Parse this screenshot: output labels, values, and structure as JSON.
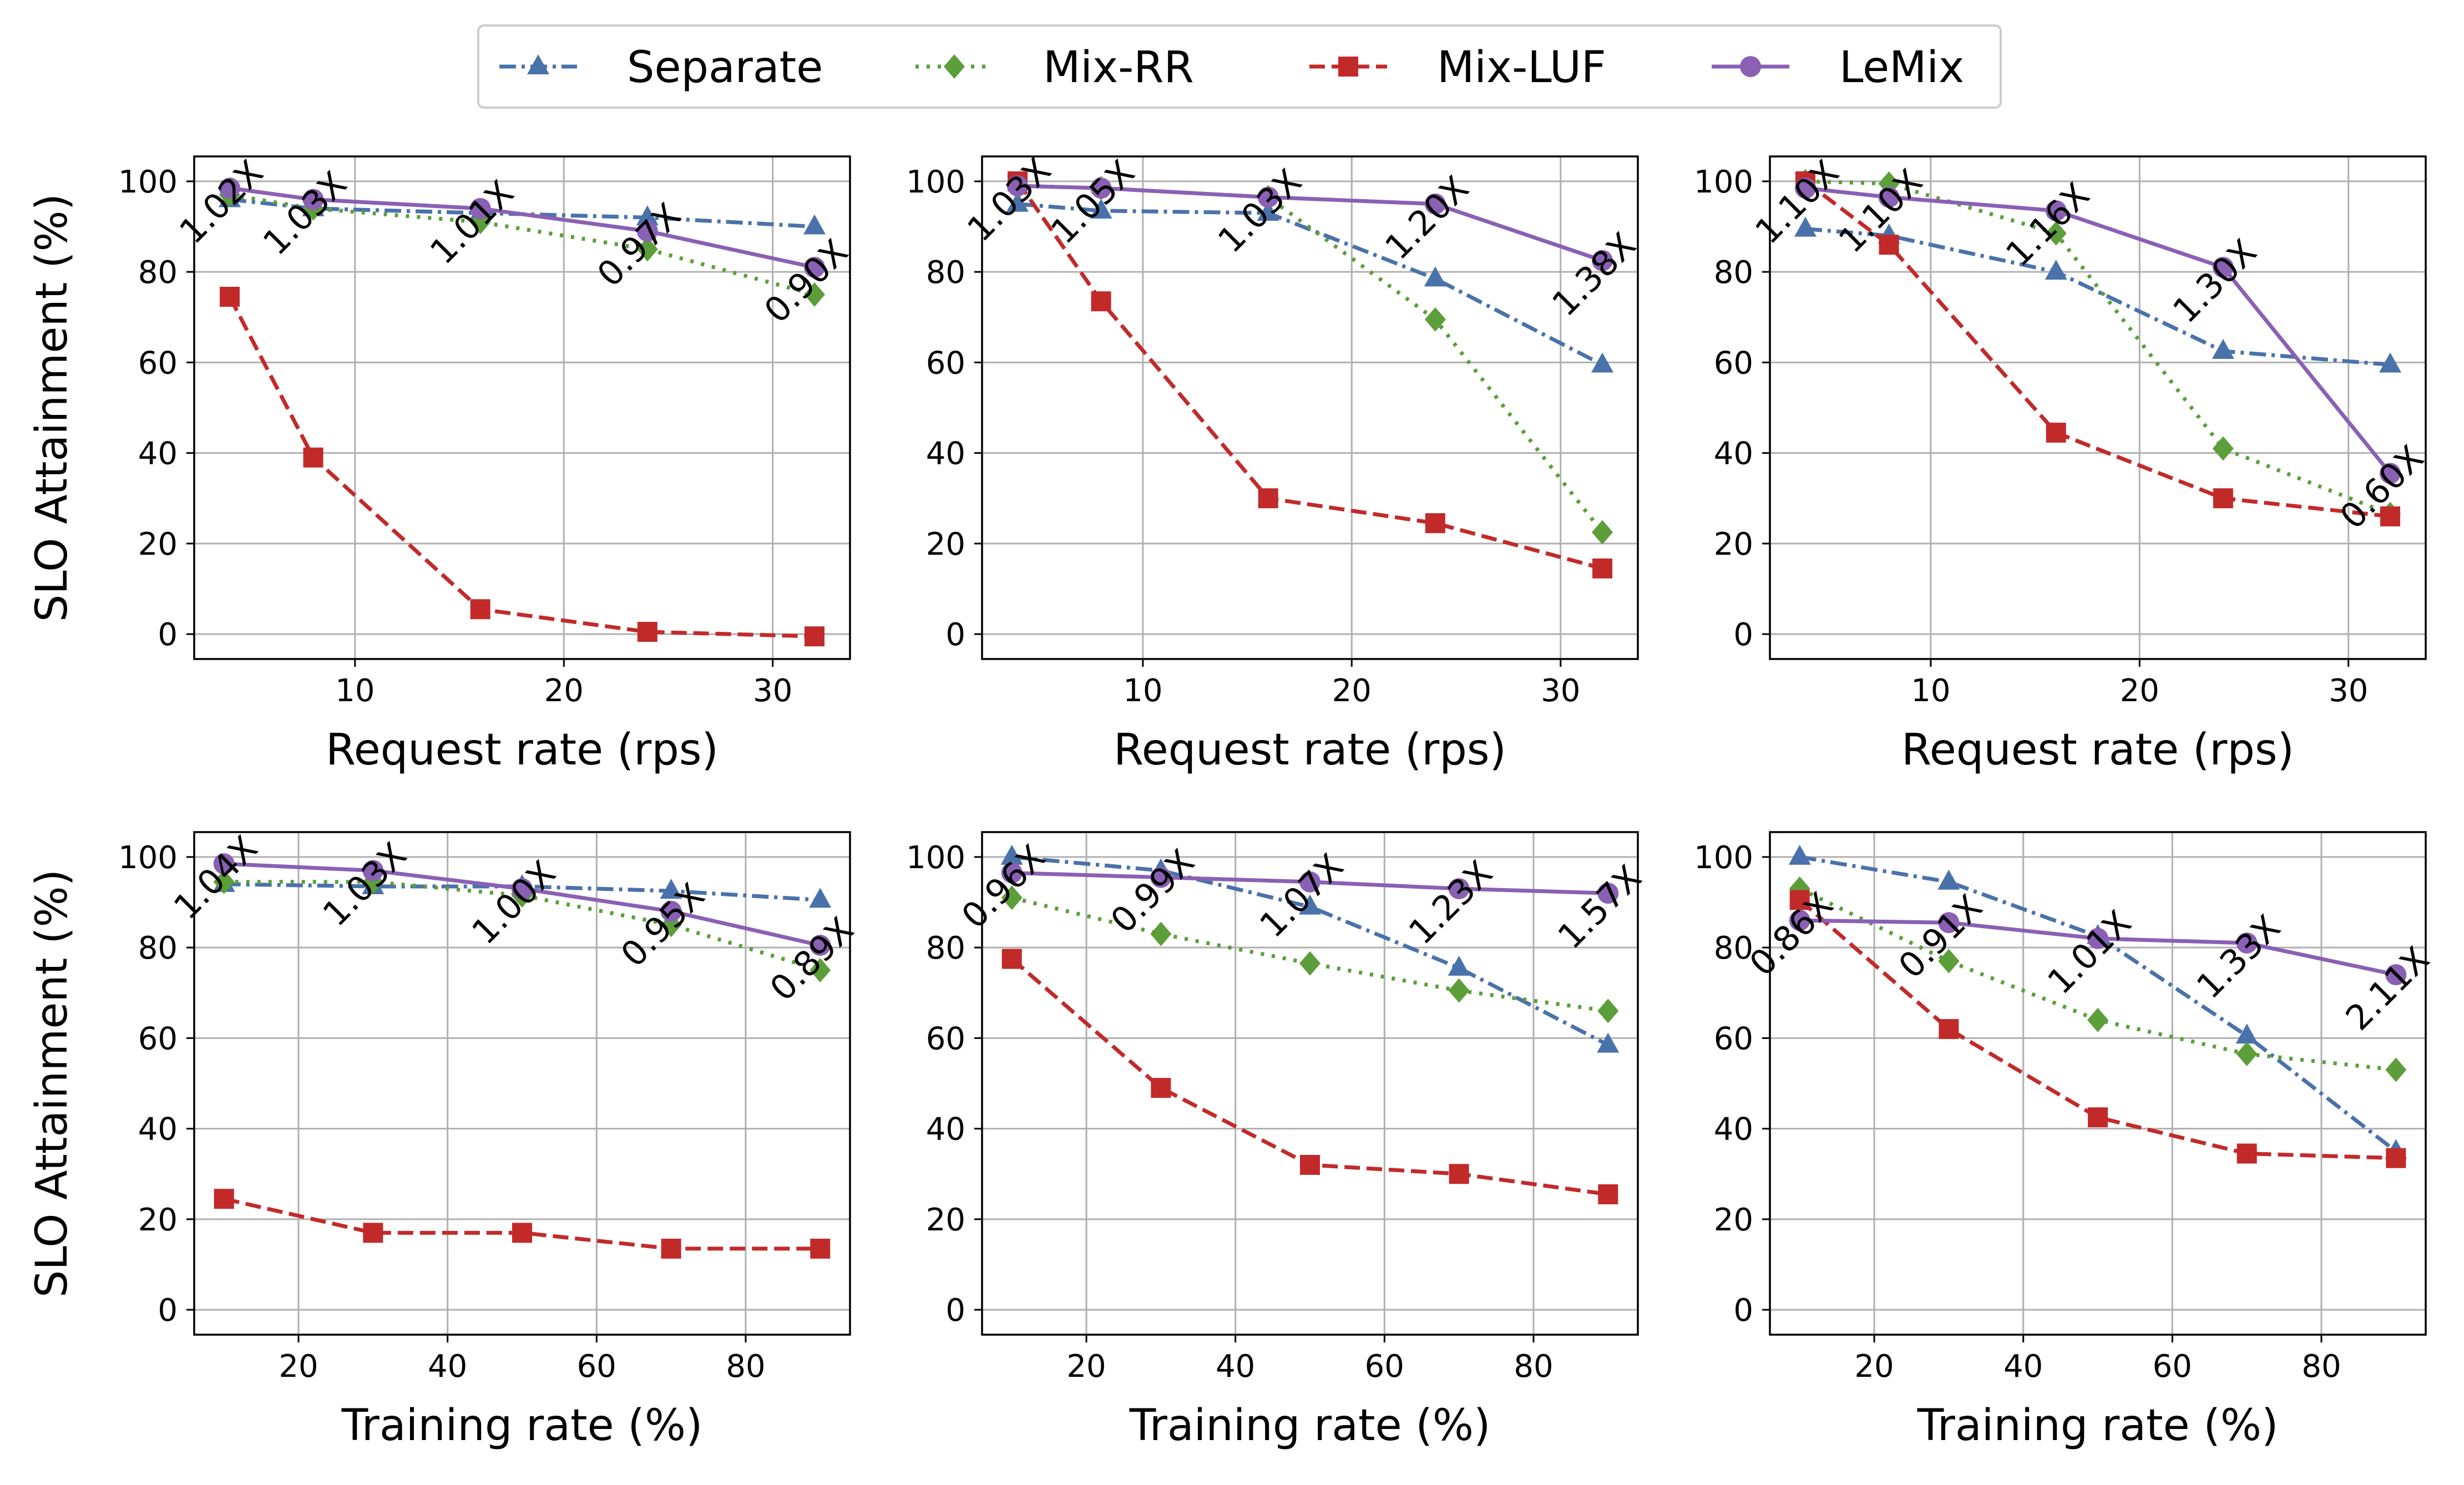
{
  "legend": [
    {
      "name": "Separate",
      "color": "#4a72aa",
      "marker": "triangle",
      "dash": "dashdot"
    },
    {
      "name": "Mix-RR",
      "color": "#5c9e3a",
      "marker": "diamond",
      "dash": "dotted"
    },
    {
      "name": "Mix-LUF",
      "color": "#c22a2a",
      "marker": "square",
      "dash": "dashed"
    },
    {
      "name": "LeMix",
      "color": "#8a60b4",
      "marker": "circle",
      "dash": "solid"
    }
  ],
  "chart_data": [
    {
      "type": "line",
      "xlabel": "Request rate (rps)",
      "ylabel": "SLO Attainment (%)",
      "xlim": [
        2.3,
        33.7
      ],
      "ylim": [
        -5.5,
        105.5
      ],
      "xticks": [
        10,
        20,
        30
      ],
      "yticks": [
        0,
        20,
        40,
        60,
        80,
        100
      ],
      "grid": true,
      "x": [
        4,
        8,
        16,
        24,
        32
      ],
      "series": [
        {
          "name": "Separate",
          "values": [
            96,
            94,
            93,
            92,
            90
          ]
        },
        {
          "name": "Mix-RR",
          "values": [
            97,
            94,
            91,
            85,
            75
          ]
        },
        {
          "name": "Mix-LUF",
          "values": [
            74.5,
            39,
            5.5,
            0.5,
            -0.5
          ]
        },
        {
          "name": "LeMix",
          "values": [
            98.5,
            96,
            94,
            89,
            81
          ]
        }
      ],
      "annotations": [
        "1.02X",
        "1.03X",
        "1.01X",
        "0.97X",
        "0.90X"
      ]
    },
    {
      "type": "line",
      "xlabel": "Request rate (rps)",
      "ylabel": "",
      "xlim": [
        2.3,
        33.7
      ],
      "ylim": [
        -5.5,
        105.5
      ],
      "xticks": [
        10,
        20,
        30
      ],
      "yticks": [
        0,
        20,
        40,
        60,
        80,
        100
      ],
      "grid": true,
      "x": [
        4,
        8,
        16,
        24,
        32
      ],
      "series": [
        {
          "name": "Separate",
          "values": [
            95,
            93.5,
            93,
            78.5,
            59.5
          ]
        },
        {
          "name": "Mix-RR",
          "values": [
            99,
            98.5,
            96.5,
            69.5,
            22.5
          ]
        },
        {
          "name": "Mix-LUF",
          "values": [
            100,
            73.5,
            30,
            24.5,
            14.5
          ]
        },
        {
          "name": "LeMix",
          "values": [
            99,
            98.5,
            96.5,
            95,
            82.5
          ]
        }
      ],
      "annotations": [
        "1.03X",
        "1.05X",
        "1.03X",
        "1.20X",
        "1.38X"
      ]
    },
    {
      "type": "line",
      "xlabel": "Request rate (rps)",
      "ylabel": "",
      "xlim": [
        2.3,
        33.7
      ],
      "ylim": [
        -5.5,
        105.5
      ],
      "xticks": [
        10,
        20,
        30
      ],
      "yticks": [
        0,
        20,
        40,
        60,
        80,
        100
      ],
      "grid": true,
      "x": [
        4,
        8,
        16,
        24,
        32
      ],
      "series": [
        {
          "name": "Separate",
          "values": [
            89.5,
            88,
            80,
            62.5,
            59.5
          ]
        },
        {
          "name": "Mix-RR",
          "values": [
            100,
            99.5,
            88.5,
            41,
            26.5
          ]
        },
        {
          "name": "Mix-LUF",
          "values": [
            100,
            86,
            44.5,
            30,
            26
          ]
        },
        {
          "name": "LeMix",
          "values": [
            98.5,
            96.5,
            93.5,
            81,
            35.5
          ]
        }
      ],
      "annotations": [
        "1.10X",
        "1.10X",
        "1.16X",
        "1.30X",
        "0.60X"
      ]
    },
    {
      "type": "line",
      "xlabel": "Training rate (%)",
      "ylabel": "SLO Attainment (%)",
      "xlim": [
        6,
        94
      ],
      "ylim": [
        -5.5,
        105.5
      ],
      "xticks": [
        20,
        40,
        60,
        80
      ],
      "yticks": [
        0,
        20,
        40,
        60,
        80,
        100
      ],
      "grid": true,
      "x": [
        10,
        30,
        50,
        70,
        90
      ],
      "series": [
        {
          "name": "Separate",
          "values": [
            94,
            93.5,
            93.5,
            92.5,
            90.5
          ]
        },
        {
          "name": "Mix-RR",
          "values": [
            94.5,
            94.5,
            91.5,
            85,
            75
          ]
        },
        {
          "name": "Mix-LUF",
          "values": [
            24.5,
            17,
            17,
            13.5,
            13.5
          ]
        },
        {
          "name": "LeMix",
          "values": [
            98.5,
            97,
            93,
            88,
            80.5
          ]
        }
      ],
      "annotations": [
        "1.04X",
        "1.03X",
        "1.00X",
        "0.95X",
        "0.89X"
      ]
    },
    {
      "type": "line",
      "xlabel": "Training rate (%)",
      "ylabel": "",
      "xlim": [
        6,
        94
      ],
      "ylim": [
        -5.5,
        105.5
      ],
      "xticks": [
        20,
        40,
        60,
        80
      ],
      "yticks": [
        0,
        20,
        40,
        60,
        80,
        100
      ],
      "grid": true,
      "x": [
        10,
        30,
        50,
        70,
        90
      ],
      "series": [
        {
          "name": "Separate",
          "values": [
            100,
            97,
            89,
            75.5,
            58.5
          ]
        },
        {
          "name": "Mix-RR",
          "values": [
            91,
            83,
            76.5,
            70.5,
            66
          ]
        },
        {
          "name": "Mix-LUF",
          "values": [
            77.5,
            49,
            32,
            30,
            25.5
          ]
        },
        {
          "name": "LeMix",
          "values": [
            96.5,
            95.5,
            94.5,
            93,
            92
          ]
        }
      ],
      "annotations": [
        "0.96X",
        "0.99X",
        "1.07X",
        "1.23X",
        "1.57X"
      ]
    },
    {
      "type": "line",
      "xlabel": "Training rate (%)",
      "ylabel": "",
      "xlim": [
        6,
        94
      ],
      "ylim": [
        -5.5,
        105.5
      ],
      "xticks": [
        20,
        40,
        60,
        80
      ],
      "yticks": [
        0,
        20,
        40,
        60,
        80,
        100
      ],
      "grid": true,
      "x": [
        10,
        30,
        50,
        70,
        90
      ],
      "series": [
        {
          "name": "Separate",
          "values": [
            100,
            94.5,
            82.5,
            60.5,
            35
          ]
        },
        {
          "name": "Mix-RR",
          "values": [
            93,
            77,
            64,
            56.5,
            53
          ]
        },
        {
          "name": "Mix-LUF",
          "values": [
            90.5,
            62,
            42.5,
            34.5,
            33.5
          ]
        },
        {
          "name": "LeMix",
          "values": [
            86,
            85.5,
            82,
            81,
            74
          ]
        }
      ],
      "annotations": [
        "0.86X",
        "0.91X",
        "1.01X",
        "1.33X",
        "2.11X"
      ]
    }
  ]
}
